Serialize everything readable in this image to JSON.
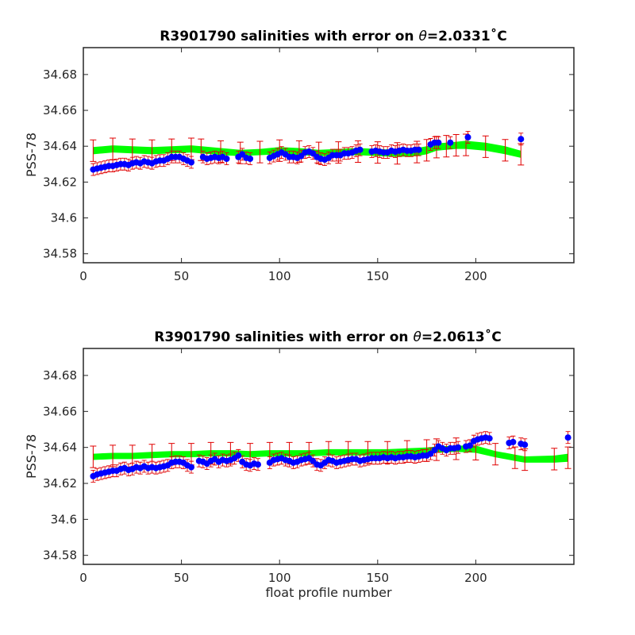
{
  "chart_data": [
    {
      "type": "scatter",
      "title": "R3901790 salinities with error on θ=2.0331˚C",
      "title_prefix": "R3901790 salinities with error on ",
      "title_theta": "θ",
      "title_value": "=2.0331",
      "title_unit": "˚C",
      "xlabel": "",
      "ylabel": "PSS-78",
      "xlim": [
        0,
        250
      ],
      "ylim": [
        34.575,
        34.695
      ],
      "xticks": [
        0,
        50,
        100,
        150,
        200
      ],
      "yticks": [
        34.58,
        34.6,
        34.62,
        34.64,
        34.66,
        34.68
      ],
      "ytick_labels": [
        "34.58",
        "34.6",
        "34.62",
        "34.64",
        "34.66",
        "34.68"
      ],
      "grid": false,
      "colors": {
        "points": "#0000ff",
        "errorbars": "#e00000",
        "band": "#00ff00"
      },
      "band": {
        "x": [
          5,
          15,
          25,
          35,
          45,
          55,
          60,
          70,
          80,
          90,
          100,
          110,
          120,
          130,
          140,
          150,
          160,
          170,
          175,
          180,
          185,
          190,
          195,
          205,
          215,
          223
        ],
        "upper": [
          34.6395,
          34.6405,
          34.64,
          34.6395,
          34.64,
          34.6405,
          34.64,
          34.639,
          34.638,
          34.6385,
          34.6395,
          34.639,
          34.638,
          34.6385,
          34.639,
          34.6385,
          34.638,
          34.639,
          34.64,
          34.6415,
          34.642,
          34.6425,
          34.643,
          34.642,
          34.64,
          34.6375
        ],
        "lower": [
          34.6355,
          34.6365,
          34.636,
          34.6355,
          34.636,
          34.6365,
          34.636,
          34.635,
          34.6345,
          34.635,
          34.6355,
          34.635,
          34.6345,
          34.6345,
          34.635,
          34.6345,
          34.634,
          34.6345,
          34.6355,
          34.6375,
          34.638,
          34.6385,
          34.6385,
          34.6375,
          34.6355,
          34.6335
        ]
      },
      "points": {
        "x": [
          5,
          7,
          9,
          11,
          13,
          15,
          17,
          19,
          21,
          23,
          25,
          27,
          29,
          31,
          33,
          35,
          37,
          39,
          41,
          43,
          45,
          47,
          49,
          51,
          53,
          55,
          61,
          63,
          65,
          67,
          69,
          71,
          73,
          79,
          81,
          83,
          85,
          95,
          97,
          99,
          101,
          103,
          105,
          107,
          109,
          111,
          113,
          115,
          117,
          119,
          121,
          123,
          125,
          127,
          129,
          131,
          133,
          135,
          137,
          139,
          141,
          147,
          149,
          151,
          153,
          155,
          157,
          159,
          161,
          163,
          165,
          167,
          169,
          171,
          177,
          179,
          181,
          187,
          196,
          223
        ],
        "y": [
          34.627,
          34.6275,
          34.628,
          34.6285,
          34.629,
          34.629,
          34.6295,
          34.63,
          34.63,
          34.6295,
          34.6305,
          34.631,
          34.6305,
          34.6315,
          34.631,
          34.6305,
          34.6315,
          34.632,
          34.632,
          34.633,
          34.634,
          34.634,
          34.634,
          34.633,
          34.632,
          34.631,
          34.634,
          34.633,
          34.6335,
          34.634,
          34.6335,
          34.634,
          34.633,
          34.634,
          34.6355,
          34.6335,
          34.633,
          34.6335,
          34.6345,
          34.6355,
          34.6365,
          34.6355,
          34.634,
          34.634,
          34.6335,
          34.6345,
          34.6365,
          34.637,
          34.636,
          34.634,
          34.633,
          34.6325,
          34.6335,
          34.635,
          34.635,
          34.635,
          34.636,
          34.636,
          34.6365,
          34.6375,
          34.638,
          34.637,
          34.6375,
          34.637,
          34.6365,
          34.6365,
          34.6375,
          34.637,
          34.6375,
          34.638,
          34.6375,
          34.6375,
          34.638,
          34.638,
          34.641,
          34.642,
          34.642,
          34.642,
          34.645,
          34.644
        ],
        "err": 0.006
      }
    },
    {
      "type": "scatter",
      "title": "R3901790 salinities with error on θ=2.0613˚C",
      "title_prefix": "R3901790 salinities with error on ",
      "title_theta": "θ",
      "title_value": "=2.0613",
      "title_unit": "˚C",
      "xlabel": "float profile number",
      "ylabel": "PSS-78",
      "xlim": [
        0,
        250
      ],
      "ylim": [
        34.575,
        34.695
      ],
      "xticks": [
        0,
        50,
        100,
        150,
        200
      ],
      "yticks": [
        34.58,
        34.6,
        34.62,
        34.64,
        34.66,
        34.68
      ],
      "ytick_labels": [
        "34.58",
        "34.6",
        "34.62",
        "34.64",
        "34.66",
        "34.68"
      ],
      "grid": false,
      "colors": {
        "points": "#0000ff",
        "errorbars": "#e00000",
        "band": "#00ff00"
      },
      "band": {
        "x": [
          5,
          15,
          25,
          35,
          45,
          55,
          65,
          75,
          85,
          95,
          105,
          115,
          125,
          135,
          145,
          155,
          165,
          175,
          180,
          190,
          200,
          210,
          220,
          225,
          240,
          247
        ],
        "upper": [
          34.6365,
          34.637,
          34.637,
          34.6375,
          34.638,
          34.638,
          34.6385,
          34.6385,
          34.638,
          34.6385,
          34.6385,
          34.6385,
          34.639,
          34.639,
          34.639,
          34.639,
          34.6395,
          34.64,
          34.6405,
          34.641,
          34.641,
          34.638,
          34.636,
          34.635,
          34.6355,
          34.6365
        ],
        "lower": [
          34.633,
          34.6335,
          34.6335,
          34.634,
          34.6345,
          34.6345,
          34.635,
          34.635,
          34.6345,
          34.635,
          34.635,
          34.635,
          34.6355,
          34.6355,
          34.6355,
          34.6355,
          34.636,
          34.6365,
          34.637,
          34.6375,
          34.637,
          34.6345,
          34.6325,
          34.6315,
          34.6315,
          34.632
        ]
      },
      "points": {
        "x": [
          5,
          7,
          9,
          11,
          13,
          15,
          17,
          19,
          21,
          23,
          25,
          27,
          29,
          31,
          33,
          35,
          37,
          39,
          41,
          43,
          45,
          47,
          49,
          51,
          53,
          55,
          59,
          61,
          63,
          65,
          67,
          69,
          71,
          73,
          75,
          77,
          79,
          81,
          83,
          85,
          87,
          89,
          95,
          97,
          99,
          101,
          103,
          105,
          107,
          109,
          111,
          113,
          115,
          117,
          119,
          121,
          123,
          125,
          127,
          129,
          131,
          133,
          135,
          137,
          139,
          141,
          143,
          145,
          147,
          149,
          151,
          153,
          155,
          157,
          159,
          161,
          163,
          165,
          167,
          169,
          171,
          173,
          175,
          177,
          179,
          181,
          183,
          185,
          187,
          189,
          191,
          195,
          197,
          199,
          201,
          203,
          205,
          207,
          217,
          219,
          223,
          225,
          247
        ],
        "y": [
          34.624,
          34.625,
          34.6255,
          34.626,
          34.6265,
          34.627,
          34.627,
          34.628,
          34.6285,
          34.6275,
          34.628,
          34.629,
          34.6285,
          34.6295,
          34.6285,
          34.629,
          34.6285,
          34.629,
          34.6295,
          34.63,
          34.6315,
          34.632,
          34.632,
          34.6315,
          34.63,
          34.629,
          34.6325,
          34.632,
          34.631,
          34.6325,
          34.6335,
          34.632,
          34.633,
          34.6325,
          34.633,
          34.634,
          34.6355,
          34.632,
          34.6305,
          34.63,
          34.631,
          34.6305,
          34.6315,
          34.633,
          34.6335,
          34.634,
          34.633,
          34.6325,
          34.6315,
          34.632,
          34.633,
          34.6335,
          34.634,
          34.6325,
          34.6305,
          34.63,
          34.6315,
          34.633,
          34.6325,
          34.6315,
          34.632,
          34.6325,
          34.633,
          34.6335,
          34.6335,
          34.6325,
          34.633,
          34.6335,
          34.634,
          34.634,
          34.634,
          34.6345,
          34.634,
          34.6345,
          34.634,
          34.6345,
          34.6345,
          34.635,
          34.635,
          34.6345,
          34.635,
          34.6355,
          34.6355,
          34.6365,
          34.6385,
          34.6405,
          34.6395,
          34.6385,
          34.6395,
          34.6395,
          34.64,
          34.6405,
          34.641,
          34.6435,
          34.6445,
          34.645,
          34.6455,
          34.645,
          34.6425,
          34.643,
          34.642,
          34.6415,
          34.6455
        ],
        "err": 0.006
      }
    }
  ]
}
